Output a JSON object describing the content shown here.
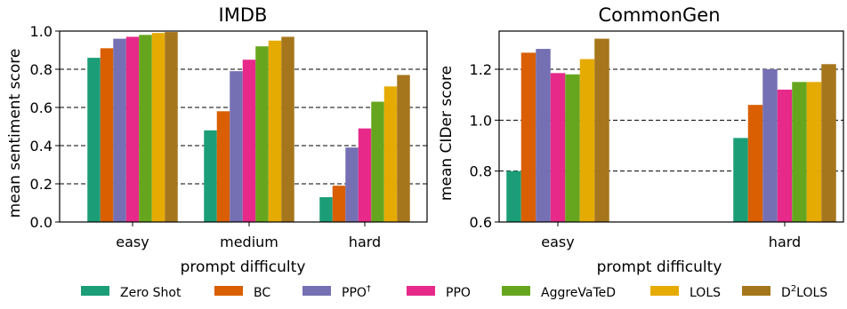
{
  "colors": [
    "#1b9e77",
    "#d95f02",
    "#7570b3",
    "#e7298a",
    "#66a61e",
    "#e6ab02",
    "#a6761d"
  ],
  "legend": {
    "entries": [
      {
        "label": "Zero Shot",
        "sup": ""
      },
      {
        "label": "BC",
        "sup": ""
      },
      {
        "label": "PPO",
        "sup": "†"
      },
      {
        "label": "PPO",
        "sup": ""
      },
      {
        "label": "AggreVaTeD",
        "sup": ""
      },
      {
        "label": "LOLS",
        "sup": ""
      },
      {
        "label": "D",
        "sup": "2",
        "suffix": "LOLS"
      }
    ]
  },
  "chart_data": [
    {
      "type": "bar",
      "title": "IMDB",
      "xlabel": "prompt difficulty",
      "ylabel": "mean sentiment score",
      "ylim": [
        0.0,
        1.0
      ],
      "yticks": [
        "0.0",
        "0.2",
        "0.4",
        "0.6",
        "0.8",
        "1.0"
      ],
      "grid": "horizontal-dashed",
      "categories": [
        "easy",
        "medium",
        "hard"
      ],
      "series": [
        {
          "name": "Zero Shot",
          "values": [
            0.86,
            0.48,
            0.13
          ]
        },
        {
          "name": "BC",
          "values": [
            0.91,
            0.58,
            0.19
          ]
        },
        {
          "name": "PPO†",
          "values": [
            0.96,
            0.79,
            0.39
          ]
        },
        {
          "name": "PPO",
          "values": [
            0.97,
            0.85,
            0.49
          ]
        },
        {
          "name": "AggreVaTeD",
          "values": [
            0.98,
            0.92,
            0.63
          ]
        },
        {
          "name": "LOLS",
          "values": [
            0.99,
            0.95,
            0.71
          ]
        },
        {
          "name": "D2LOLS",
          "values": [
            0.995,
            0.97,
            0.77
          ]
        }
      ]
    },
    {
      "type": "bar",
      "title": "CommonGen",
      "xlabel": "prompt difficulty",
      "ylabel": "mean CIDer score",
      "ylim": [
        0.6,
        1.35
      ],
      "yticks": [
        "0.6",
        "0.8",
        "1.0",
        "1.2"
      ],
      "grid": "horizontal-dashed",
      "categories": [
        "easy",
        "hard"
      ],
      "series": [
        {
          "name": "Zero Shot",
          "values": [
            0.8,
            0.93
          ]
        },
        {
          "name": "BC",
          "values": [
            1.265,
            1.06
          ]
        },
        {
          "name": "PPO†",
          "values": [
            1.28,
            1.2
          ]
        },
        {
          "name": "PPO",
          "values": [
            1.185,
            1.12
          ]
        },
        {
          "name": "AggreVaTeD",
          "values": [
            1.18,
            1.15
          ]
        },
        {
          "name": "LOLS",
          "values": [
            1.24,
            1.15
          ]
        },
        {
          "name": "D2LOLS",
          "values": [
            1.32,
            1.22
          ]
        }
      ]
    }
  ]
}
